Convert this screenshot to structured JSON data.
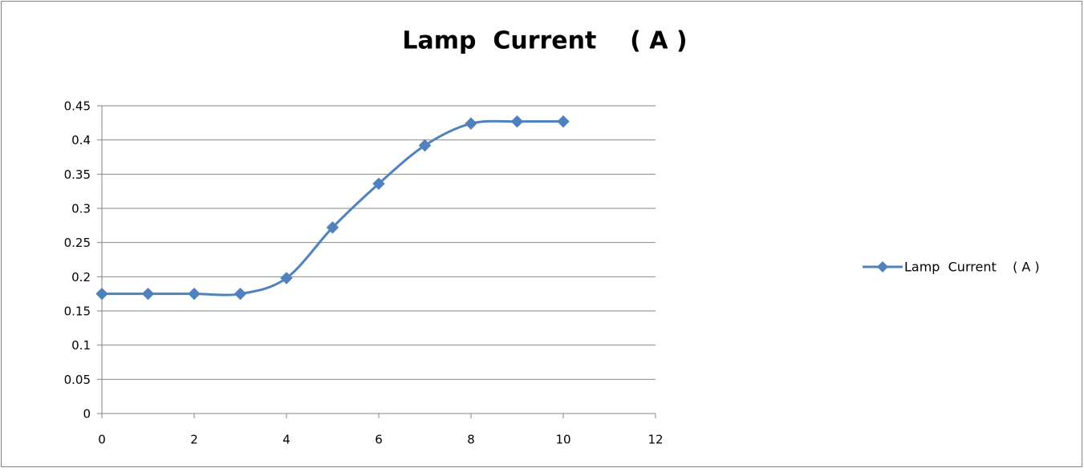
{
  "chart_data": {
    "type": "line",
    "smooth": true,
    "title": "Lamp  Current    ( A )",
    "x": [
      0,
      1,
      2,
      3,
      4,
      5,
      6,
      7,
      8,
      9,
      10
    ],
    "series": [
      {
        "name": "Lamp  Current    ( A )",
        "color": "#4f81bd",
        "values": [
          0.175,
          0.175,
          0.175,
          0.175,
          0.198,
          0.272,
          0.336,
          0.392,
          0.424,
          0.427,
          0.427
        ]
      }
    ],
    "xlim": [
      0,
      12
    ],
    "xticks": [
      0,
      2,
      4,
      6,
      8,
      10,
      12
    ],
    "ylim": [
      0,
      0.45
    ],
    "yticks": [
      0,
      0.05,
      0.1,
      0.15,
      0.2,
      0.25,
      0.3,
      0.35,
      0.4,
      0.45
    ],
    "grid": true,
    "legend": "right"
  }
}
